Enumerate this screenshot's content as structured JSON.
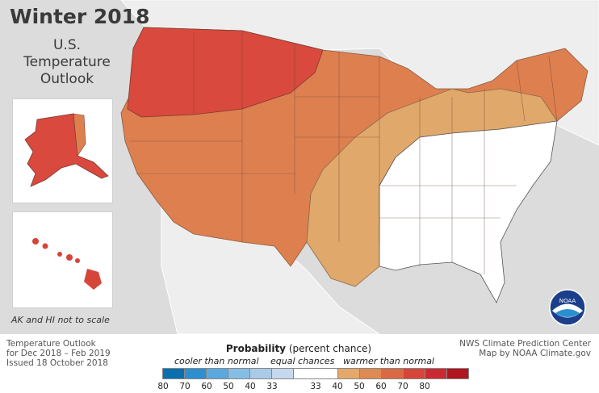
{
  "title": "Winter 2018",
  "subtitle": [
    "U.S.",
    "Temperature",
    "Outlook"
  ],
  "inset_note": "AK and HI not to scale",
  "logo_text": "NOAA",
  "footer_left": [
    "Temperature Outlook",
    "for Dec 2018 – Feb 2019",
    "Issued 18 October 2018"
  ],
  "footer_right": [
    "NWS Climate Prediction Center",
    "Map by NOAA Climate.gov"
  ],
  "legend": {
    "title_bold": "Probability",
    "title_rest": " (percent chance)",
    "cooler_label": "cooler than normal",
    "equal_label": "equal chances",
    "warmer_label": "warmer than normal",
    "cool_colors": [
      "#0a6fae",
      "#2d8fd0",
      "#5aa8dd",
      "#86bde6",
      "#a9cbe8",
      "#c5d8ee"
    ],
    "warm_colors": [
      "#e3a86a",
      "#de8a54",
      "#d96a43",
      "#d6453a",
      "#c92a32",
      "#b1151f"
    ],
    "ticks": [
      "80",
      "70",
      "60",
      "50",
      "40",
      "33",
      "33",
      "40",
      "50",
      "60",
      "70",
      "80"
    ]
  },
  "colors": {
    "background": "#dcdcdc",
    "land_outside": "#eeeeee",
    "zone_60": "#d9493d",
    "zone_50": "#de7f50",
    "zone_40": "#e1a86b",
    "zone_ec": "#ffffff",
    "hawaii": "#d6453a"
  }
}
